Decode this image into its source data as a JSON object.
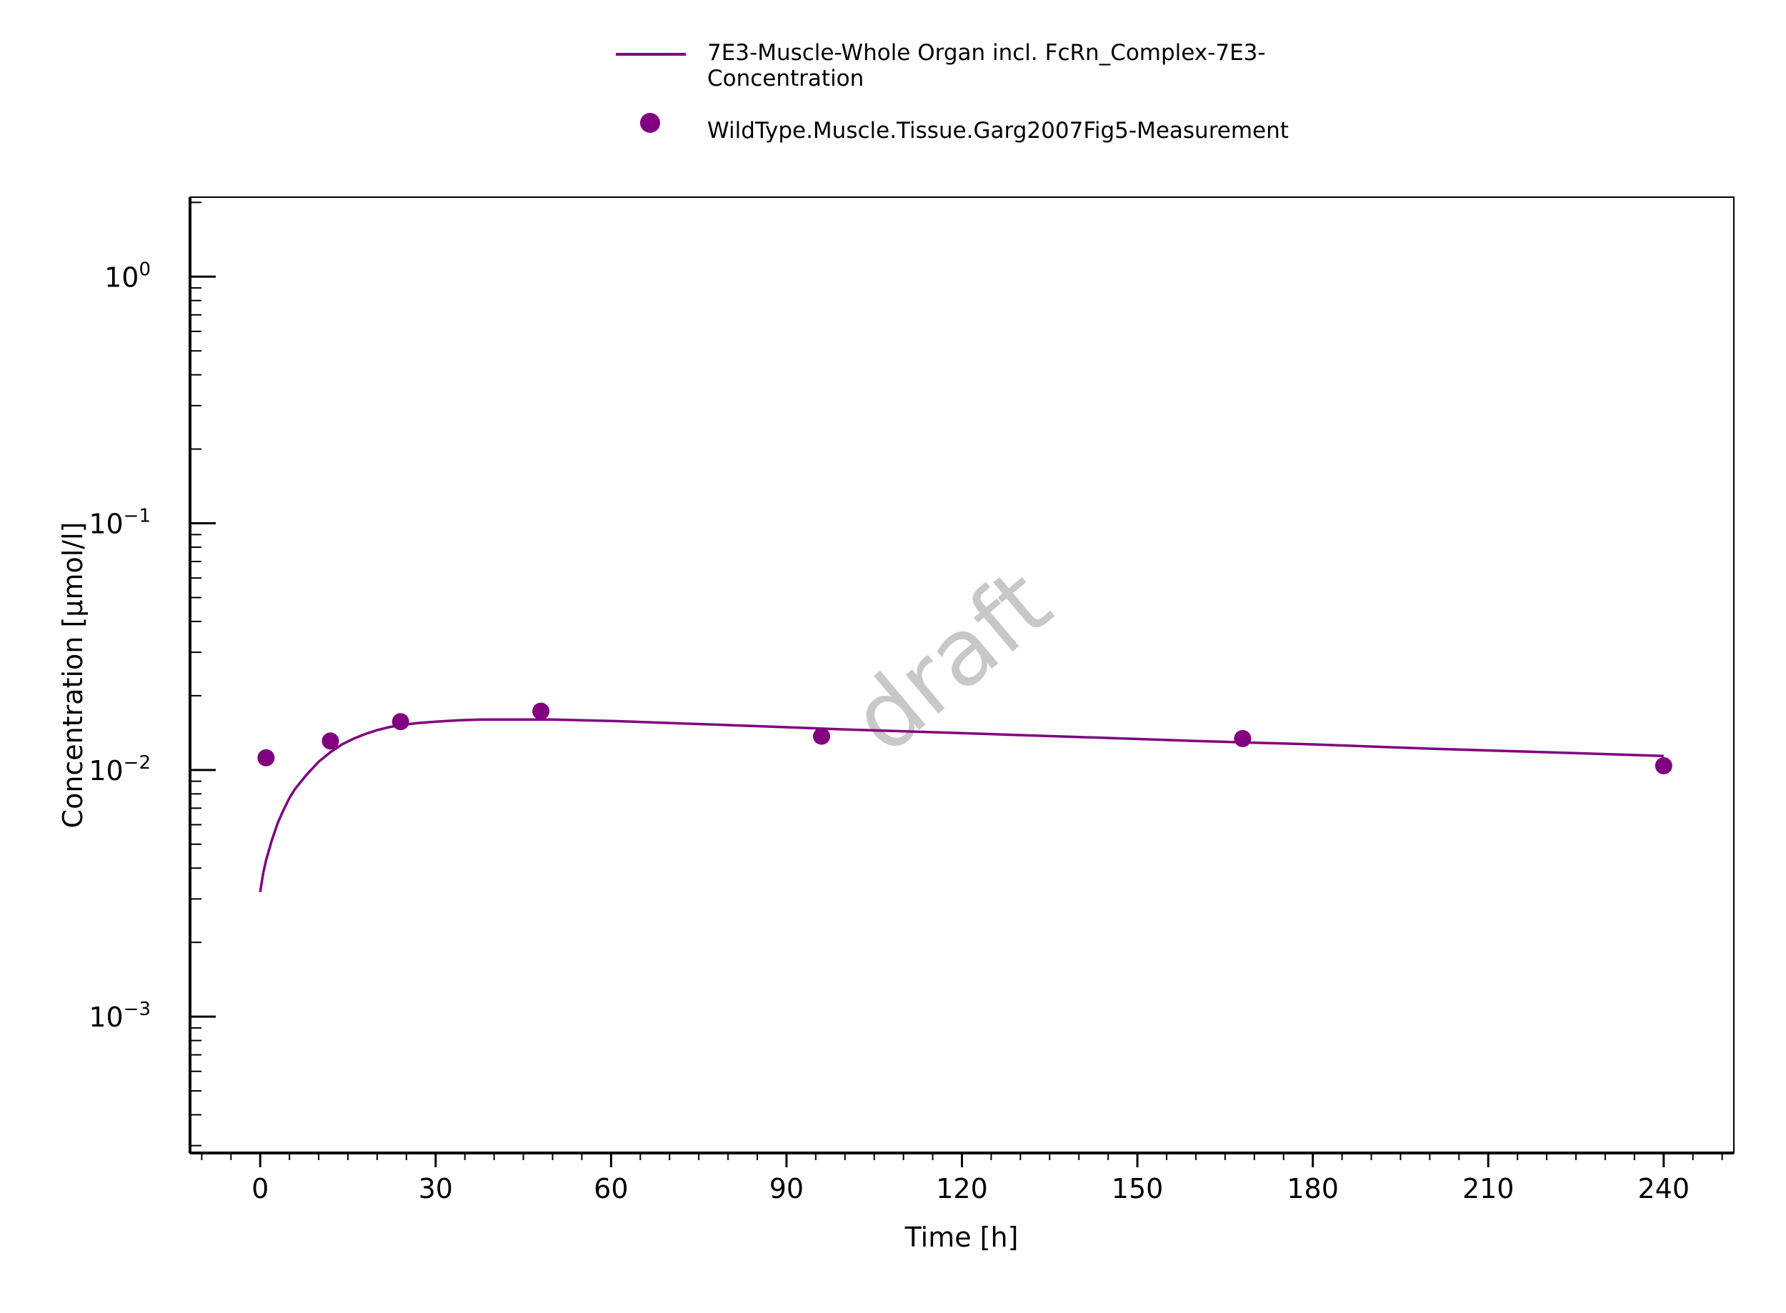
{
  "chart_data": {
    "type": "line",
    "title": "",
    "xlabel": "Time [h]",
    "ylabel": "Concentration [µmol/l]",
    "xlim": [
      -12,
      252
    ],
    "ylim": [
      0.00028,
      2.1
    ],
    "yscale": "log",
    "x_ticks": [
      0,
      30,
      60,
      90,
      120,
      150,
      180,
      210,
      240
    ],
    "y_ticks": [
      {
        "value": 1,
        "base": "10",
        "exp": "0"
      },
      {
        "value": 0.1,
        "base": "10",
        "exp": "−1"
      },
      {
        "value": 0.01,
        "base": "10",
        "exp": "−2"
      },
      {
        "value": 0.001,
        "base": "10",
        "exp": "−3"
      }
    ],
    "grid": false,
    "legend_position": "top-center",
    "watermark": "draft",
    "color": "#800080",
    "series": [
      {
        "name": "7E3-Muscle-Whole Organ incl. FcRn_Complex-7E3-Concentration",
        "name_lines": [
          "7E3-Muscle-Whole Organ incl. FcRn_Complex-7E3-",
          "Concentration"
        ],
        "kind": "line",
        "x": [
          0,
          0.5,
          1,
          2,
          3,
          4,
          5,
          6,
          8,
          10,
          12,
          14,
          16,
          18,
          20,
          22,
          24,
          27,
          30,
          34,
          38,
          42,
          46,
          50,
          55,
          60,
          70,
          80,
          90,
          100,
          120,
          140,
          160,
          180,
          200,
          220,
          240
        ],
        "y": [
          0.0032,
          0.0038,
          0.0043,
          0.0052,
          0.0061,
          0.0069,
          0.0077,
          0.0084,
          0.0096,
          0.0108,
          0.0118,
          0.0127,
          0.0134,
          0.014,
          0.0145,
          0.0149,
          0.0152,
          0.0155,
          0.0157,
          0.0159,
          0.016,
          0.016,
          0.016,
          0.016,
          0.0159,
          0.0158,
          0.0155,
          0.0152,
          0.0149,
          0.0146,
          0.0141,
          0.0136,
          0.0131,
          0.0127,
          0.0122,
          0.0118,
          0.0114
        ]
      },
      {
        "name": "WildType.Muscle.Tissue.Garg2007Fig5-Measurement",
        "kind": "scatter",
        "x": [
          1,
          12,
          24,
          48,
          96,
          168,
          240
        ],
        "y": [
          0.0112,
          0.0131,
          0.0157,
          0.0173,
          0.0137,
          0.0134,
          0.0104
        ]
      }
    ]
  }
}
